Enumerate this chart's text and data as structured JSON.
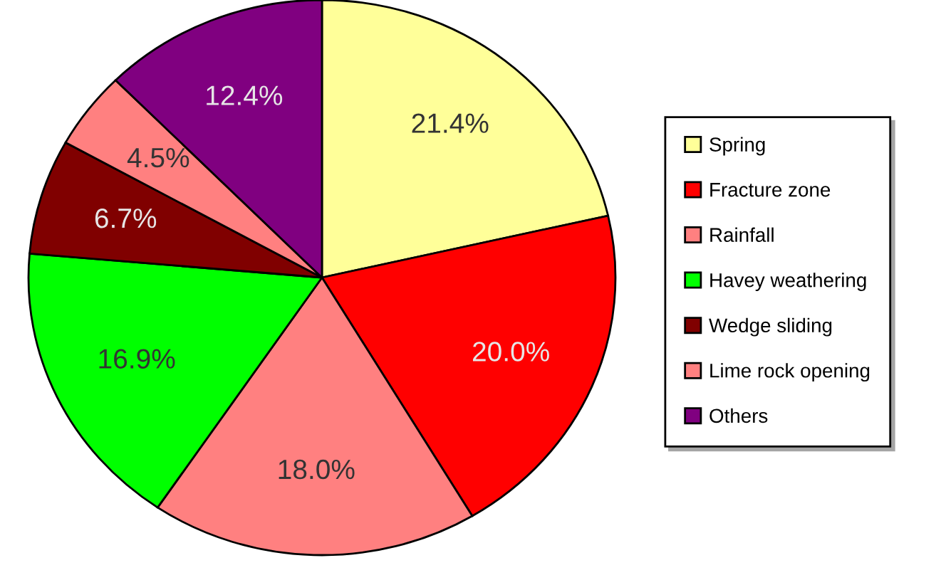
{
  "chart_data": {
    "type": "pie",
    "categories": [
      "Spring",
      "Fracture zone",
      "Rainfall",
      "Havey weathering",
      "Wedge sliding",
      "Lime rock opening",
      "Others"
    ],
    "values": [
      21.4,
      20.0,
      18.0,
      16.9,
      6.7,
      4.5,
      12.4
    ],
    "colors": [
      "#ffff99",
      "#ff0000",
      "#ff8080",
      "#00ff00",
      "#800000",
      "#ff8080",
      "#800080"
    ],
    "value_labels": [
      "21.4%",
      "20.0%",
      "18.0%",
      "16.9%",
      "6.7%",
      "4.5%",
      "12.4%"
    ],
    "legend": "right"
  }
}
